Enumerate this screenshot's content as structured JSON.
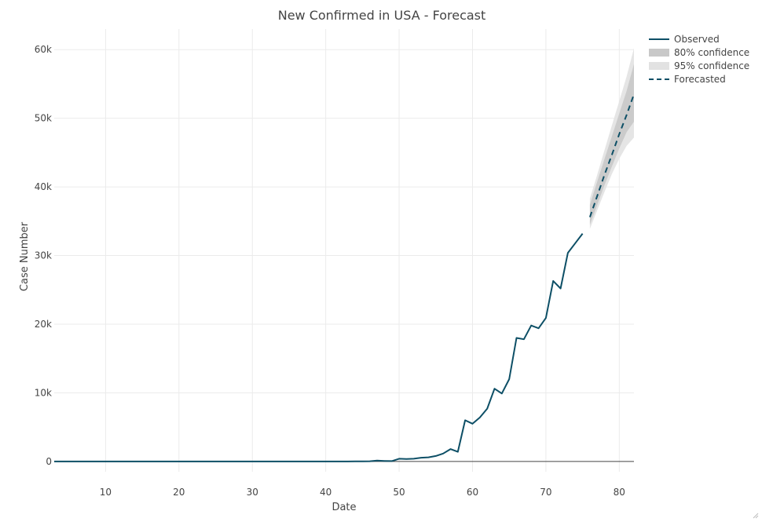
{
  "chart_data": {
    "type": "line",
    "title": "New Confirmed in USA - Forecast",
    "xlabel": "Date",
    "ylabel": "Case Number",
    "xlim": [
      3,
      82
    ],
    "ylim": [
      -1500,
      63000
    ],
    "x_ticks": [
      10,
      20,
      30,
      40,
      50,
      60,
      70,
      80
    ],
    "y_ticks": [
      0,
      10000,
      20000,
      30000,
      40000,
      50000,
      60000
    ],
    "y_tick_labels": [
      "0",
      "10k",
      "20k",
      "30k",
      "40k",
      "50k",
      "60k"
    ],
    "grid": true,
    "legend_position": "top-right",
    "colors": {
      "observed": "#0d4f66",
      "forecast": "#0d4f66",
      "ci80": "#c8c8c8",
      "ci95": "#e2e2e2",
      "grid": "#ebebeb",
      "zeroline": "#444444"
    },
    "series": [
      {
        "name": "Observed",
        "style": "solid",
        "x": [
          3,
          4,
          5,
          6,
          7,
          8,
          9,
          10,
          11,
          12,
          13,
          14,
          15,
          16,
          17,
          18,
          19,
          20,
          21,
          22,
          23,
          24,
          25,
          26,
          27,
          28,
          29,
          30,
          31,
          32,
          33,
          34,
          35,
          36,
          37,
          38,
          39,
          40,
          41,
          42,
          43,
          44,
          45,
          46,
          47,
          48,
          49,
          50,
          51,
          52,
          53,
          54,
          55,
          56,
          57,
          58,
          59,
          60,
          61,
          62,
          63,
          64,
          65,
          66,
          67,
          68,
          69,
          70,
          71,
          72,
          73,
          74,
          75
        ],
        "y": [
          0,
          0,
          0,
          0,
          0,
          0,
          0,
          0,
          0,
          0,
          0,
          0,
          0,
          0,
          0,
          0,
          0,
          0,
          0,
          0,
          0,
          0,
          0,
          0,
          0,
          0,
          0,
          0,
          0,
          0,
          0,
          0,
          0,
          0,
          0,
          0,
          0,
          0,
          0,
          0,
          0,
          10,
          20,
          30,
          120,
          80,
          60,
          400,
          350,
          400,
          550,
          600,
          800,
          1150,
          1800,
          1400,
          6000,
          5500,
          6400,
          7700,
          10600,
          9900,
          12000,
          18000,
          17800,
          19800,
          19400,
          20900,
          26300,
          25200,
          30400,
          31800,
          33200
        ]
      },
      {
        "name": "Forecasted",
        "style": "dashed",
        "x": [
          76,
          77,
          78,
          79,
          80,
          81,
          82
        ],
        "y": [
          35600,
          38700,
          41800,
          44700,
          47700,
          50500,
          53500
        ]
      }
    ],
    "bands": [
      {
        "name": "95% confidence",
        "x": [
          76,
          77,
          78,
          79,
          80,
          81,
          82
        ],
        "lower": [
          33900,
          36600,
          39300,
          41900,
          44100,
          46000,
          47200
        ],
        "upper": [
          38300,
          41800,
          45400,
          49000,
          52500,
          56100,
          60200
        ]
      },
      {
        "name": "80% confidence",
        "x": [
          76,
          77,
          78,
          79,
          80,
          81,
          82
        ],
        "lower": [
          34500,
          37400,
          40300,
          43000,
          45600,
          48000,
          49500
        ],
        "upper": [
          37400,
          40800,
          44100,
          47400,
          50700,
          54000,
          57900
        ]
      }
    ],
    "legend": [
      "Observed",
      "80% confidence",
      "95% confidence",
      "Forecasted"
    ]
  }
}
